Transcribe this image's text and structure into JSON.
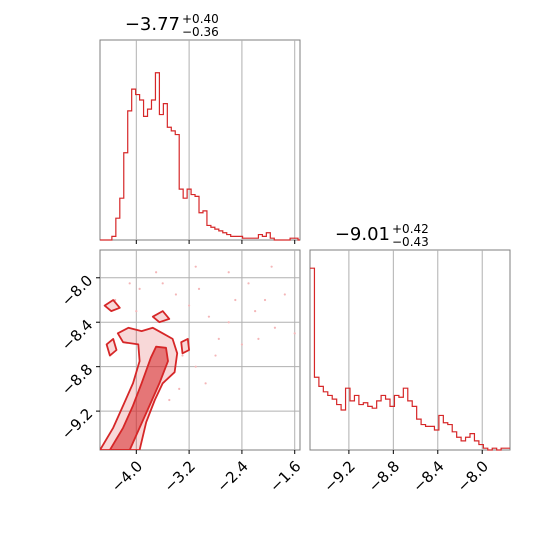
{
  "chart_data": [
    {
      "type": "histogram",
      "panel": "top-left",
      "title": {
        "main": "−3.77",
        "sup": "+0.40",
        "sub": "−0.36"
      },
      "xlim": [
        -4.55,
        -1.52
      ],
      "xticks": [
        -4.0,
        -3.2,
        -2.4,
        -1.6
      ],
      "ylim": [
        0,
        110
      ],
      "bin_edges": [
        -4.55,
        -4.49,
        -4.43,
        -4.37,
        -4.31,
        -4.25,
        -4.19,
        -4.13,
        -4.07,
        -4.01,
        -3.95,
        -3.89,
        -3.83,
        -3.77,
        -3.71,
        -3.65,
        -3.59,
        -3.53,
        -3.47,
        -3.41,
        -3.35,
        -3.29,
        -3.23,
        -3.17,
        -3.11,
        -3.05,
        -2.99,
        -2.93,
        -2.87,
        -2.81,
        -2.75,
        -2.69,
        -2.63,
        -2.57,
        -2.51,
        -2.45,
        -2.39,
        -2.33,
        -2.27,
        -2.21,
        -2.15,
        -2.09,
        -2.03,
        -1.97,
        -1.91,
        -1.85,
        -1.79,
        -1.73,
        -1.67,
        -1.61,
        -1.55,
        -1.52
      ],
      "counts": [
        0,
        0,
        0,
        2,
        12,
        23,
        48,
        71,
        83,
        80,
        77,
        68,
        72,
        77,
        92,
        69,
        75,
        62,
        60,
        58,
        28,
        23,
        28,
        25,
        24,
        15,
        16,
        8,
        7,
        6,
        5,
        4,
        3,
        2,
        2,
        2,
        1,
        1,
        1,
        1,
        3,
        2,
        4,
        1,
        0,
        0,
        0,
        0,
        1,
        1,
        0
      ],
      "color": "#d62728"
    },
    {
      "type": "histogram",
      "panel": "bottom-right",
      "title": {
        "main": "−9.01",
        "sup": "+0.42",
        "sub": "−0.43"
      },
      "xlim": [
        -9.55,
        -7.75
      ],
      "xticks": [
        -9.2,
        -8.8,
        -8.4,
        -8.0
      ],
      "ylim": [
        0,
        110
      ],
      "bin_edges": [
        -9.55,
        -9.51,
        -9.47,
        -9.43,
        -9.39,
        -9.35,
        -9.31,
        -9.27,
        -9.23,
        -9.19,
        -9.15,
        -9.11,
        -9.07,
        -9.03,
        -8.99,
        -8.95,
        -8.91,
        -8.87,
        -8.83,
        -8.79,
        -8.75,
        -8.71,
        -8.67,
        -8.63,
        -8.59,
        -8.55,
        -8.51,
        -8.47,
        -8.43,
        -8.39,
        -8.35,
        -8.31,
        -8.27,
        -8.23,
        -8.19,
        -8.15,
        -8.11,
        -8.07,
        -8.03,
        -7.99,
        -7.95,
        -7.91,
        -7.87,
        -7.83,
        -7.79,
        -7.75
      ],
      "counts": [
        0,
        100,
        40,
        35,
        32,
        30,
        28,
        25,
        22,
        20,
        17,
        13,
        35,
        30,
        30,
        20,
        15,
        6,
        3,
        1,
        0,
        0,
        0,
        0,
        0,
        0,
        0,
        0,
        0,
        0,
        0,
        0,
        0,
        0,
        0,
        0,
        0,
        0,
        0,
        0,
        0,
        0,
        0,
        0,
        0
      ],
      "counts_full": [
        100,
        40,
        35,
        32,
        30,
        28,
        25,
        22,
        34,
        27,
        30,
        25,
        26,
        24,
        23,
        27,
        30,
        28,
        24,
        30,
        29,
        34,
        27,
        24,
        17,
        14,
        13,
        13,
        11,
        19,
        15,
        14,
        10,
        7,
        5,
        7,
        9,
        5,
        3,
        1,
        0,
        1,
        0,
        1,
        1
      ],
      "color": "#d62728"
    },
    {
      "type": "contour",
      "panel": "bottom-left",
      "xlim": [
        -4.55,
        -1.52
      ],
      "ylim": [
        -9.55,
        -7.75
      ],
      "xticks": [
        -4.0,
        -3.2,
        -2.4,
        -1.6
      ],
      "yticks": [
        -8.0,
        -8.4,
        -8.8,
        -9.2
      ],
      "color": "#d62728",
      "levels": [
        {
          "name": "inner",
          "points": [
            [
              -4.4,
              -9.55
            ],
            [
              -4.2,
              -9.35
            ],
            [
              -4.05,
              -9.15
            ],
            [
              -3.92,
              -8.95
            ],
            [
              -3.78,
              -8.72
            ],
            [
              -3.7,
              -8.62
            ],
            [
              -3.55,
              -8.63
            ],
            [
              -3.52,
              -8.75
            ],
            [
              -3.65,
              -8.95
            ],
            [
              -3.8,
              -9.15
            ],
            [
              -3.95,
              -9.35
            ],
            [
              -4.1,
              -9.55
            ]
          ]
        },
        {
          "name": "outer",
          "points": [
            [
              -4.55,
              -9.55
            ],
            [
              -4.35,
              -9.35
            ],
            [
              -4.2,
              -9.15
            ],
            [
              -4.05,
              -8.95
            ],
            [
              -3.95,
              -8.75
            ],
            [
              -3.97,
              -8.6
            ],
            [
              -4.2,
              -8.58
            ],
            [
              -4.28,
              -8.5
            ],
            [
              -4.12,
              -8.45
            ],
            [
              -3.92,
              -8.48
            ],
            [
              -3.75,
              -8.45
            ],
            [
              -3.6,
              -8.5
            ],
            [
              -3.45,
              -8.55
            ],
            [
              -3.38,
              -8.68
            ],
            [
              -3.42,
              -8.85
            ],
            [
              -3.6,
              -8.95
            ],
            [
              -3.72,
              -9.1
            ],
            [
              -3.85,
              -9.3
            ],
            [
              -3.95,
              -9.55
            ]
          ]
        },
        {
          "name": "blob-top-left",
          "points": [
            [
              -4.48,
              -8.25
            ],
            [
              -4.35,
              -8.2
            ],
            [
              -4.25,
              -8.27
            ],
            [
              -4.38,
              -8.3
            ]
          ]
        },
        {
          "name": "blob-top-mid",
          "points": [
            [
              -3.75,
              -8.35
            ],
            [
              -3.6,
              -8.3
            ],
            [
              -3.5,
              -8.37
            ],
            [
              -3.65,
              -8.4
            ]
          ]
        },
        {
          "name": "blob-left-mid",
          "points": [
            [
              -4.45,
              -8.6
            ],
            [
              -4.35,
              -8.55
            ],
            [
              -4.3,
              -8.65
            ],
            [
              -4.4,
              -8.7
            ]
          ]
        },
        {
          "name": "blob-right",
          "points": [
            [
              -3.32,
              -8.58
            ],
            [
              -3.22,
              -8.55
            ],
            [
              -3.2,
              -8.65
            ],
            [
              -3.3,
              -8.68
            ]
          ]
        }
      ],
      "scatter": [
        [
          -4.32,
          -8.2
        ],
        [
          -4.1,
          -8.05
        ],
        [
          -3.95,
          -8.1
        ],
        [
          -3.6,
          -8.05
        ],
        [
          -3.4,
          -8.15
        ],
        [
          -3.2,
          -8.25
        ],
        [
          -3.05,
          -8.1
        ],
        [
          -2.9,
          -8.35
        ],
        [
          -2.75,
          -8.55
        ],
        [
          -2.6,
          -8.4
        ],
        [
          -2.4,
          -8.6
        ],
        [
          -2.2,
          -8.3
        ],
        [
          -2.05,
          -8.2
        ],
        [
          -1.9,
          -8.45
        ],
        [
          -1.75,
          -8.15
        ],
        [
          -1.6,
          -8.5
        ],
        [
          -2.6,
          -7.95
        ],
        [
          -3.1,
          -7.9
        ],
        [
          -3.3,
          -8.7
        ],
        [
          -3.1,
          -8.8
        ],
        [
          -2.95,
          -8.95
        ],
        [
          -3.35,
          -9.0
        ],
        [
          -3.5,
          -9.1
        ],
        [
          -2.8,
          -8.7
        ],
        [
          -2.5,
          -8.2
        ],
        [
          -2.3,
          -8.05
        ],
        [
          -1.95,
          -7.9
        ],
        [
          -3.7,
          -7.95
        ],
        [
          -4.0,
          -8.3
        ],
        [
          -2.15,
          -8.55
        ]
      ]
    }
  ]
}
